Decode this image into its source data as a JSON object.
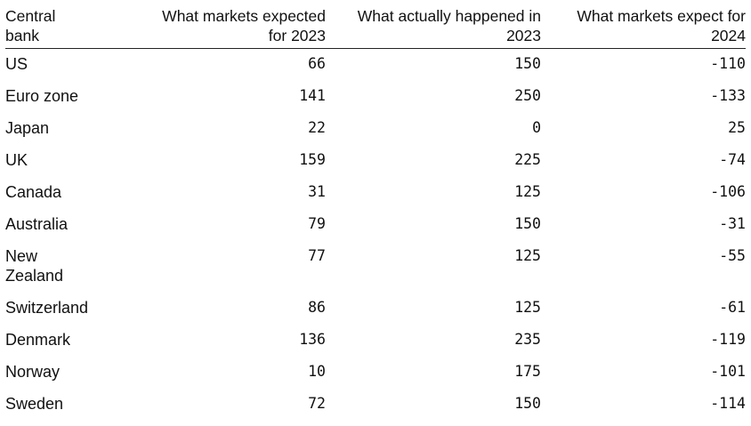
{
  "chart_data": {
    "type": "table",
    "columns": [
      "Central bank",
      "What markets expected for 2023",
      "What actually happened in 2023",
      "What markets expect for 2024"
    ],
    "header_lines": [
      [
        "Central",
        "bank"
      ],
      [
        "What markets expected",
        "for 2023"
      ],
      [
        "What actually happened in",
        "2023"
      ],
      [
        "What markets expect for",
        "2024"
      ]
    ],
    "rows": [
      {
        "bank": [
          "US"
        ],
        "expected_2023": "66",
        "actual_2023": "150",
        "expected_2024": "-110"
      },
      {
        "bank": [
          "Euro zone"
        ],
        "expected_2023": "141",
        "actual_2023": "250",
        "expected_2024": "-133"
      },
      {
        "bank": [
          "Japan"
        ],
        "expected_2023": "22",
        "actual_2023": "0",
        "expected_2024": "25"
      },
      {
        "bank": [
          "UK"
        ],
        "expected_2023": "159",
        "actual_2023": "225",
        "expected_2024": "-74"
      },
      {
        "bank": [
          "Canada"
        ],
        "expected_2023": "31",
        "actual_2023": "125",
        "expected_2024": "-106"
      },
      {
        "bank": [
          "Australia"
        ],
        "expected_2023": "79",
        "actual_2023": "150",
        "expected_2024": "-31"
      },
      {
        "bank": [
          "New",
          "Zealand"
        ],
        "expected_2023": "77",
        "actual_2023": "125",
        "expected_2024": "-55"
      },
      {
        "bank": [
          "Switzerland"
        ],
        "expected_2023": "86",
        "actual_2023": "125",
        "expected_2024": "-61"
      },
      {
        "bank": [
          "Denmark"
        ],
        "expected_2023": "136",
        "actual_2023": "235",
        "expected_2024": "-119"
      },
      {
        "bank": [
          "Norway"
        ],
        "expected_2023": "10",
        "actual_2023": "175",
        "expected_2024": "-101"
      },
      {
        "bank": [
          "Sweden"
        ],
        "expected_2023": "72",
        "actual_2023": "150",
        "expected_2024": "-114"
      }
    ]
  }
}
